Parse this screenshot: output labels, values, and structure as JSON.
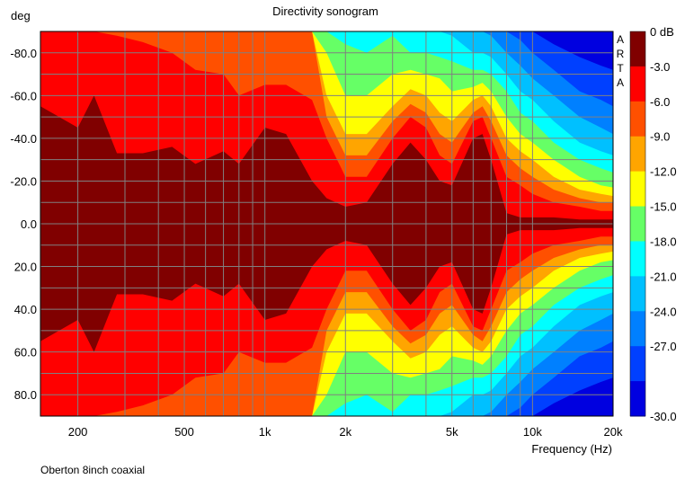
{
  "chart_data": {
    "type": "heatmap",
    "title": "Directivity sonogram",
    "ylabel": "deg",
    "xlabel": "Frequency (Hz)",
    "footnote": "Oberton 8inch coaxial",
    "watermark": "ARTA",
    "x_scale": "log",
    "xlim": [
      145,
      20000
    ],
    "ylim": [
      -90,
      90
    ],
    "y_inverted": true,
    "grid": true,
    "x_ticks": [
      {
        "value": 200,
        "label": "200"
      },
      {
        "value": 500,
        "label": "500"
      },
      {
        "value": 1000,
        "label": "1k"
      },
      {
        "value": 2000,
        "label": "2k"
      },
      {
        "value": 5000,
        "label": "5k"
      },
      {
        "value": 10000,
        "label": "10k"
      },
      {
        "value": 20000,
        "label": "20k"
      }
    ],
    "y_ticks": [
      {
        "value": -80,
        "label": "-80.0"
      },
      {
        "value": -60,
        "label": "-60.0"
      },
      {
        "value": -40,
        "label": "-40.0"
      },
      {
        "value": -20,
        "label": "-20.0"
      },
      {
        "value": 0,
        "label": "0.0"
      },
      {
        "value": 20,
        "label": "20.0"
      },
      {
        "value": 40,
        "label": "40.0"
      },
      {
        "value": 60,
        "label": "60.0"
      },
      {
        "value": 80,
        "label": "80.0"
      }
    ],
    "colorbar": [
      {
        "label": "0 dB",
        "color": "#800000"
      },
      {
        "label": "-3.0",
        "color": "#ff0000"
      },
      {
        "label": "-6.0",
        "color": "#ff5000"
      },
      {
        "label": "-9.0",
        "color": "#ffa500"
      },
      {
        "label": "-12.0",
        "color": "#ffff00"
      },
      {
        "label": "-15.0",
        "color": "#66ff66"
      },
      {
        "label": "-18.0",
        "color": "#00ffff"
      },
      {
        "label": "-21.0",
        "color": "#00c0ff"
      },
      {
        "label": "-24.0",
        "color": "#0080ff"
      },
      {
        "label": "-27.0",
        "color": "#0040ff"
      },
      {
        "label": "-30.0",
        "color": "#0000e0"
      }
    ],
    "contours_deg": {
      "frequencies": [
        145,
        200,
        230,
        280,
        350,
        450,
        550,
        700,
        800,
        1000,
        1200,
        1500,
        1700,
        2000,
        2400,
        3000,
        3500,
        4000,
        4500,
        5000,
        6000,
        6500,
        7000,
        8000,
        9000,
        10000,
        12000,
        15000,
        18000,
        20000
      ],
      "level_-3": [
        55,
        45,
        60,
        33,
        33,
        36,
        28,
        34,
        28,
        45,
        42,
        20,
        12,
        8,
        10,
        28,
        38,
        30,
        20,
        18,
        40,
        42,
        30,
        5,
        3,
        3,
        3,
        2,
        2,
        2
      ],
      "level_-6": [
        90,
        90,
        90,
        88,
        85,
        80,
        72,
        70,
        60,
        65,
        65,
        58,
        40,
        22,
        22,
        40,
        50,
        45,
        32,
        28,
        48,
        50,
        40,
        22,
        18,
        14,
        10,
        8,
        6,
        6
      ],
      "level_-9": [
        95,
        95,
        95,
        95,
        95,
        95,
        95,
        95,
        95,
        95,
        95,
        95,
        50,
        32,
        32,
        48,
        56,
        52,
        42,
        38,
        52,
        55,
        48,
        32,
        26,
        22,
        16,
        12,
        10,
        10
      ],
      "level_-12": [
        95,
        95,
        95,
        95,
        95,
        95,
        95,
        95,
        95,
        95,
        95,
        95,
        60,
        42,
        42,
        55,
        63,
        60,
        52,
        48,
        58,
        60,
        55,
        40,
        34,
        30,
        22,
        16,
        14,
        13
      ],
      "level_-15": [
        95,
        95,
        95,
        95,
        95,
        95,
        95,
        95,
        95,
        95,
        95,
        95,
        80,
        60,
        60,
        70,
        72,
        70,
        68,
        62,
        64,
        66,
        62,
        50,
        42,
        38,
        30,
        22,
        18,
        17
      ],
      "level_-18": [
        95,
        95,
        95,
        95,
        95,
        95,
        95,
        95,
        95,
        95,
        95,
        95,
        95,
        84,
        80,
        88,
        80,
        80,
        78,
        76,
        72,
        72,
        70,
        62,
        52,
        48,
        38,
        30,
        26,
        24
      ],
      "level_-21": [
        95,
        95,
        95,
        95,
        95,
        95,
        95,
        95,
        95,
        95,
        95,
        95,
        95,
        95,
        95,
        95,
        95,
        95,
        90,
        88,
        80,
        80,
        78,
        70,
        62,
        58,
        48,
        38,
        34,
        32
      ],
      "level_-24": [
        95,
        95,
        95,
        95,
        95,
        95,
        95,
        95,
        95,
        95,
        95,
        95,
        95,
        95,
        95,
        95,
        95,
        95,
        95,
        95,
        95,
        90,
        88,
        80,
        74,
        68,
        60,
        50,
        45,
        42
      ],
      "level_-27": [
        95,
        95,
        95,
        95,
        95,
        95,
        95,
        95,
        95,
        95,
        95,
        95,
        95,
        95,
        95,
        95,
        95,
        95,
        95,
        95,
        95,
        95,
        95,
        90,
        86,
        80,
        72,
        62,
        58,
        55
      ],
      "level_-30": [
        95,
        95,
        95,
        95,
        95,
        95,
        95,
        95,
        95,
        95,
        95,
        95,
        95,
        95,
        95,
        95,
        95,
        95,
        95,
        95,
        95,
        95,
        95,
        95,
        95,
        92,
        84,
        78,
        74,
        72
      ]
    }
  }
}
